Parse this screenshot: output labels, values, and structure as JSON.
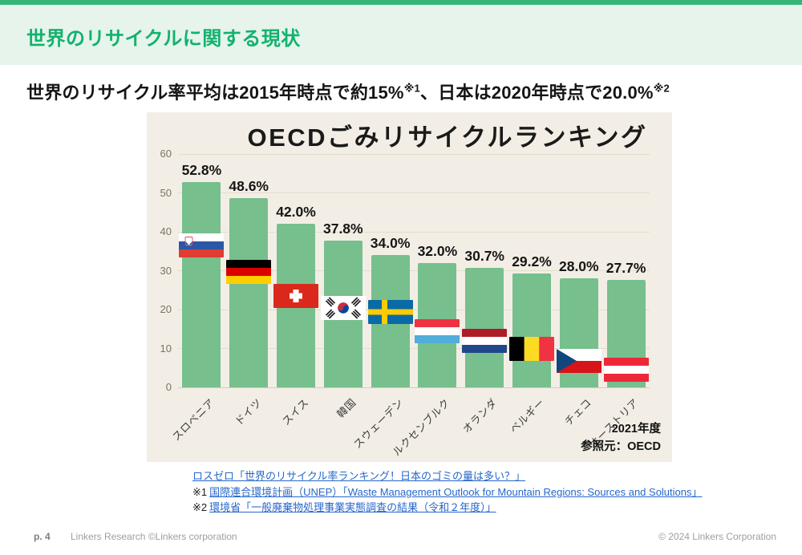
{
  "header": {
    "title": "世界のリサイクルに関する現状"
  },
  "subtitle": {
    "parts": [
      {
        "text": "世界のリサイクル率平均は2015年時点で約15%"
      },
      {
        "sup": "※1"
      },
      {
        "text": "、日本は2020年時点で20.0%"
      },
      {
        "sup": "※2"
      }
    ]
  },
  "chart_data": {
    "type": "bar",
    "title": "OECDごみリサイクルランキング",
    "categories": [
      "スロベニア",
      "ドイツ",
      "スイス",
      "韓国",
      "スウェーデン",
      "ルクセンブルク",
      "オランダ",
      "ベルギー",
      "チェコ",
      "オーストリア"
    ],
    "values": [
      52.8,
      48.6,
      42.0,
      37.8,
      34.0,
      32.0,
      30.7,
      29.2,
      28.0,
      27.7
    ],
    "value_labels": [
      "52.8%",
      "48.6%",
      "42.0%",
      "37.8%",
      "34.0%",
      "32.0%",
      "30.7%",
      "29.2%",
      "28.0%",
      "27.7%"
    ],
    "flags": [
      "slovenia",
      "germany",
      "switzerland",
      "south-korea",
      "sweden",
      "luxembourg",
      "netherlands",
      "belgium",
      "czechia",
      "austria"
    ],
    "flag_bottoms": [
      33.5,
      26.5,
      20.5,
      17.3,
      16.3,
      11.3,
      8.8,
      6.8,
      3.8,
      1.5
    ],
    "xlabel": "",
    "ylabel": "",
    "ylim": [
      0,
      60
    ],
    "yticks": [
      0,
      10,
      20,
      30,
      40,
      50,
      60
    ],
    "grid": true,
    "legend": "none",
    "note_lines": [
      "2021年度",
      "参照元：OECD"
    ],
    "bar_color": "#77bf8d",
    "panel_bg": "#f3eee5",
    "gridline_color": "#e3ddcd",
    "baseline_color": "#d4cdbb"
  },
  "sources": [
    {
      "prefix": "",
      "link": "ロスゼロ「世界のリサイクル率ランキング！日本のゴミの量は多い？」"
    },
    {
      "prefix": "※1",
      "link": "国際連合環境計画（UNEP）「Waste Management Outlook for Mountain Regions: Sources and Solutions」"
    },
    {
      "prefix": "※2",
      "link": "環境省「一般廃棄物処理事業実態調査の結果（令和２年度）」"
    }
  ],
  "footer": {
    "page": "p. 4",
    "left": "Linkers Research ©Linkers corporation",
    "right": "© 2024 Linkers Corporation"
  },
  "colors": {
    "accent_green": "#35b577",
    "band_green": "#e6f4ec",
    "title_green": "#12b26d",
    "link_blue": "#2767c9"
  }
}
